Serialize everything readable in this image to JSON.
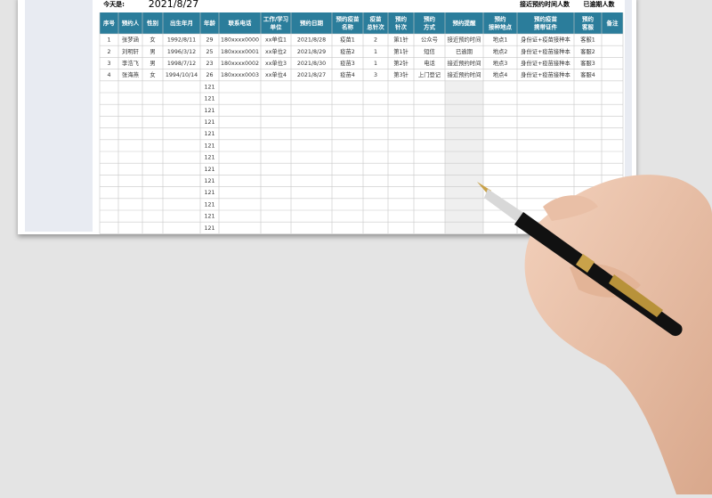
{
  "header": {
    "today_label": "今天是:",
    "today_date": "2021/8/27",
    "near_label": "接近预约时间人数",
    "overdue_label": "已逾期人数"
  },
  "table": {
    "headers": [
      [
        "序号"
      ],
      [
        "预约人"
      ],
      [
        "性别"
      ],
      [
        "出生年月"
      ],
      [
        "年龄"
      ],
      [
        "联系电话"
      ],
      [
        "工作/学习",
        "单位"
      ],
      [
        "预约日期"
      ],
      [
        "预约疫苗",
        "名称"
      ],
      [
        "疫苗",
        "总针次"
      ],
      [
        "预约",
        "针次"
      ],
      [
        "预约",
        "方式"
      ],
      [
        "预约提醒"
      ],
      [
        "预约",
        "接种地点"
      ],
      [
        "预约疫苗",
        "携带证件"
      ],
      [
        "预约",
        "客服"
      ],
      [
        "备注"
      ]
    ],
    "rows": [
      [
        "1",
        "张梦涵",
        "女",
        "1992/8/11",
        "29",
        "180xxxx0000",
        "xx单位1",
        "2021/8/28",
        "疫苗1",
        "2",
        "第1针",
        "公众号",
        "接近预约时间",
        "地点1",
        "身份证+疫苗接种本",
        "客服1"
      ],
      [
        "2",
        "刘明轩",
        "男",
        "1996/3/12",
        "25",
        "180xxxx0001",
        "xx单位2",
        "2021/8/29",
        "疫苗2",
        "1",
        "第1针",
        "短信",
        "已逾期",
        "地点2",
        "身份证+疫苗接种本",
        "客服2"
      ],
      [
        "3",
        "李浩飞",
        "男",
        "1998/7/12",
        "23",
        "180xxxx0002",
        "xx单位3",
        "2021/8/30",
        "疫苗3",
        "1",
        "第2针",
        "电话",
        "接近预约时间",
        "地点3",
        "身份证+疫苗接种本",
        "客服3"
      ],
      [
        "4",
        "张海燕",
        "女",
        "1994/10/14",
        "26",
        "180xxxx0003",
        "xx单位4",
        "2021/8/27",
        "疫苗4",
        "3",
        "第3针",
        "上门登记",
        "接近预约时间",
        "地点4",
        "身份证+疫苗接种本",
        "客服4"
      ]
    ],
    "blank_row_ages": [
      "121",
      "121",
      "121",
      "121",
      "121",
      "121",
      "121",
      "121",
      "121",
      "121",
      "121",
      "121",
      "121"
    ]
  }
}
